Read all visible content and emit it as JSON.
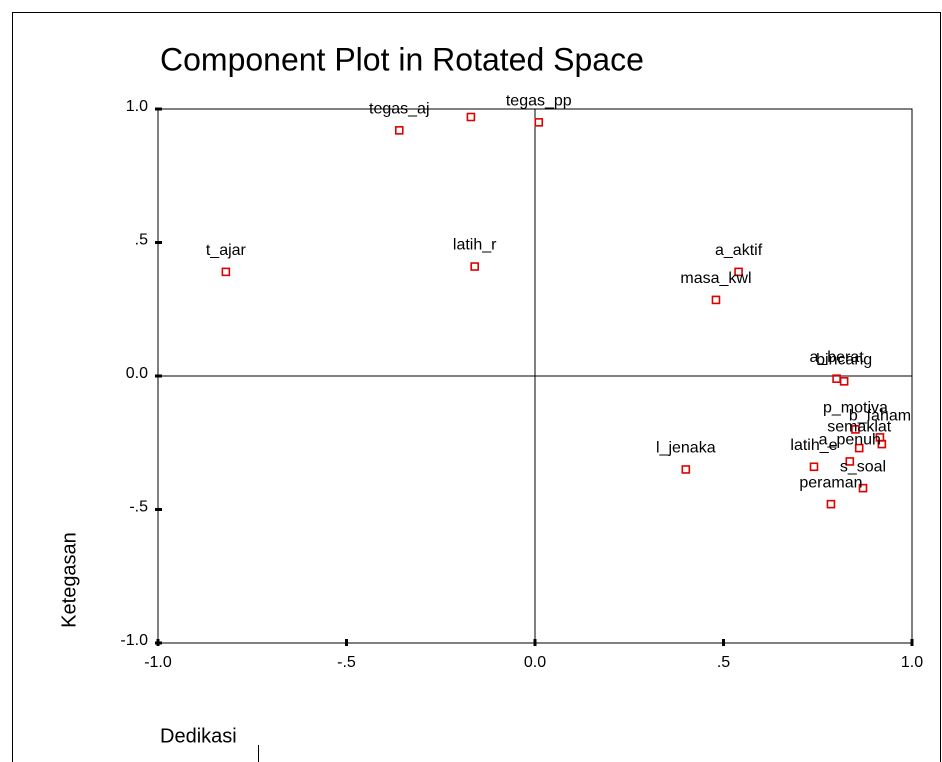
{
  "chart_data": {
    "type": "scatter",
    "title": "Component Plot in Rotated Space",
    "x_label": "Dedikasi",
    "y_label": "Ketegasan",
    "color": "#e00000",
    "labels": [
      "tegas_aj",
      null,
      "tegas_pp",
      "t_ajar",
      "latih_r",
      "a_aktif",
      "masa_kwl",
      "a_berat",
      "bincang",
      "p_motiva",
      "b_faham",
      "semaklat",
      null,
      "a_penuh",
      "latih_e",
      "s_soal",
      "peraman",
      "l_jenaka"
    ],
    "x": [
      -0.36,
      -0.17,
      0.01,
      -0.82,
      -0.16,
      0.54,
      0.48,
      0.8,
      0.82,
      0.85,
      0.915,
      0.86,
      0.92,
      0.835,
      0.74,
      0.87,
      0.785,
      0.4
    ],
    "values": [
      0.92,
      0.97,
      0.95,
      0.39,
      0.41,
      0.39,
      0.285,
      -0.01,
      -0.02,
      -0.2,
      -0.23,
      -0.27,
      -0.255,
      -0.32,
      -0.34,
      -0.42,
      -0.48,
      -0.35
    ],
    "xlim": [
      -1,
      1
    ],
    "ylim": [
      -1,
      1
    ],
    "xticks": [
      {
        "value": -1,
        "label": "-1.0"
      },
      {
        "value": -0.5,
        "label": "-.5"
      },
      {
        "value": 0,
        "label": "0.0"
      },
      {
        "value": 0.5,
        "label": ".5"
      },
      {
        "value": 1,
        "label": "1.0"
      }
    ],
    "yticks": [
      {
        "value": -1,
        "label": "-1.0"
      },
      {
        "value": -0.5,
        "label": "-.5"
      },
      {
        "value": 0,
        "label": "0.0"
      },
      {
        "value": 0.5,
        "label": ".5"
      },
      {
        "value": 1,
        "label": "1.0"
      }
    ]
  }
}
